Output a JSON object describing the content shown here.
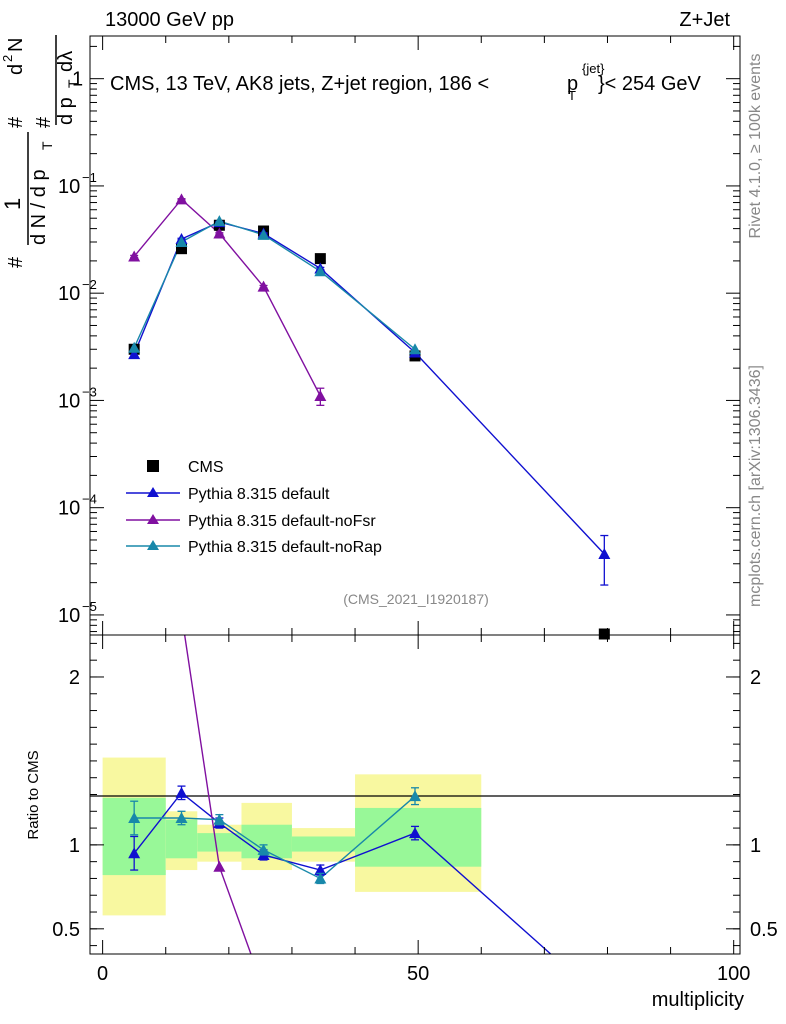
{
  "header": {
    "left": "13000 GeV pp",
    "right": "Z+Jet"
  },
  "title_text": "CMS, 13 TeV, AK8 jets, Z+jet region, 186 <",
  "title_pt": "p",
  "title_pt_sub": "T",
  "title_pt_sup": "{jet}",
  "title_after": "}< 254 GeV",
  "side_rivet": "Rivet 4.1.0, ≥ 100k events",
  "side_mcplots": "mcplots.cern.ch [arXiv:1306.3436]",
  "watermark": "(CMS_2021_I1920187)",
  "ylabel_top": {
    "d2": "d",
    "sup2": "2",
    "N": "N",
    "hash": "#",
    "one": "1",
    "dN": "d N / d p",
    "T": "T",
    "dp": "d p",
    "dlambda": "dλ"
  },
  "colors": {
    "cms": "#000000",
    "default": "#1010d0",
    "noFsr": "#8010a0",
    "noRap": "#1888aa",
    "band1": "#98f898",
    "band2": "#f8f8a0"
  },
  "chart_data": [
    {
      "type": "scatter",
      "title": "CMS, 13 TeV, AK8 jets, Z+jet region, 186 < p_T^{jet} < 254 GeV",
      "xlabel": "",
      "ylabel": "1/(dN/dp_T) d2N/(dp_T dlambda)",
      "yscale": "log",
      "ylim": [
        6.5e-06,
        2.5
      ],
      "xlim": [
        -2,
        101
      ],
      "yticks": [
        {
          "value": 1,
          "label": "1"
        },
        {
          "value": 0.1,
          "label": "10",
          "exp": "−1"
        },
        {
          "value": 0.01,
          "label": "10",
          "exp": "−2"
        },
        {
          "value": 0.001,
          "label": "10",
          "exp": "−3"
        },
        {
          "value": 0.0001,
          "label": "10",
          "exp": "−4"
        },
        {
          "value": 1e-05,
          "label": "10",
          "exp": "−5"
        }
      ],
      "legend": [
        {
          "label": "CMS",
          "key": "cms"
        },
        {
          "label": "Pythia 8.315 default",
          "key": "default"
        },
        {
          "label": "Pythia 8.315 default-noFsr",
          "key": "noFsr"
        },
        {
          "label": "Pythia 8.315 default-noRap",
          "key": "noRap"
        }
      ],
      "series": [
        {
          "name": "CMS",
          "key": "cms",
          "x": [
            5,
            12.5,
            18.5,
            25.5,
            34.5,
            49.5,
            79.5
          ],
          "y": [
            0.003,
            0.026,
            0.043,
            0.038,
            0.021,
            0.0026,
            6.6e-06
          ]
        },
        {
          "name": "Pythia 8.315 default",
          "key": "default",
          "x": [
            5,
            12.5,
            18.5,
            25.5,
            34.5,
            49.5,
            79.5
          ],
          "y": [
            0.0027,
            0.032,
            0.046,
            0.036,
            0.017,
            0.0028,
            3.7e-05
          ],
          "err": [
            0.0002,
            0.0005,
            0.0006,
            0.0005,
            0.0004,
            0.0001,
            1.8e-05
          ]
        },
        {
          "name": "Pythia 8.315 default-noFsr",
          "key": "noFsr",
          "x": [
            5,
            12.5,
            18.5,
            25.5,
            34.5
          ],
          "y": [
            0.022,
            0.075,
            0.036,
            0.0115,
            0.0011
          ],
          "err": [
            0.0005,
            0.001,
            0.0006,
            0.0003,
            0.0002
          ]
        },
        {
          "name": "Pythia 8.315 default-noRap",
          "key": "noRap",
          "x": [
            5,
            12.5,
            18.5,
            25.5,
            34.5,
            49.5
          ],
          "y": [
            0.0031,
            0.03,
            0.047,
            0.035,
            0.016,
            0.003
          ]
        }
      ]
    },
    {
      "type": "scatter",
      "title": "",
      "xlabel": "multiplicity",
      "ylabel": "Ratio to CMS",
      "yscale": "linear",
      "ylim": [
        0.35,
        2.25
      ],
      "xlim": [
        -2,
        101
      ],
      "yticks": [
        {
          "value": 0.5,
          "label": "0.5"
        },
        {
          "value": 1,
          "label": "1"
        },
        {
          "value": 2,
          "label": "2"
        }
      ],
      "xticks": [
        {
          "value": 0,
          "label": "0"
        },
        {
          "value": 50,
          "label": "50"
        },
        {
          "value": 100,
          "label": "100"
        }
      ],
      "bands": [
        {
          "x0": 0,
          "x1": 10,
          "inner": [
            0.82,
            1.28
          ],
          "outer": [
            0.58,
            1.52
          ]
        },
        {
          "x0": 10,
          "x1": 15,
          "inner": [
            0.92,
            1.15
          ],
          "outer": [
            0.85,
            1.2
          ]
        },
        {
          "x0": 15,
          "x1": 22,
          "inner": [
            0.96,
            1.07
          ],
          "outer": [
            0.9,
            1.12
          ]
        },
        {
          "x0": 22,
          "x1": 30,
          "inner": [
            0.92,
            1.12
          ],
          "outer": [
            0.85,
            1.25
          ]
        },
        {
          "x0": 30,
          "x1": 40,
          "inner": [
            0.96,
            1.05
          ],
          "outer": [
            0.9,
            1.1
          ]
        },
        {
          "x0": 40,
          "x1": 60,
          "inner": [
            0.87,
            1.22
          ],
          "outer": [
            0.72,
            1.42
          ]
        }
      ],
      "series": [
        {
          "name": "Pythia 8.315 default",
          "key": "default",
          "x": [
            5,
            12.5,
            18.5,
            25.5,
            34.5,
            49.5,
            71
          ],
          "y": [
            0.95,
            1.31,
            1.13,
            0.94,
            0.85,
            1.07,
            0.35
          ],
          "err": [
            0.1,
            0.04,
            0.03,
            0.03,
            0.03,
            0.04,
            0
          ]
        },
        {
          "name": "Pythia 8.315 default-noFsr",
          "key": "noFsr",
          "x": [
            13,
            18.5,
            23.5
          ],
          "y": [
            2.25,
            0.87,
            0.35
          ]
        },
        {
          "name": "Pythia 8.315 default-noRap",
          "key": "noRap",
          "x": [
            5,
            12.5,
            18.5,
            25.5,
            34.5,
            49.5
          ],
          "y": [
            1.16,
            1.16,
            1.15,
            0.97,
            0.8,
            1.29
          ],
          "err": [
            0.1,
            0.04,
            0.03,
            0.03,
            0.03,
            0.05
          ]
        }
      ]
    }
  ]
}
